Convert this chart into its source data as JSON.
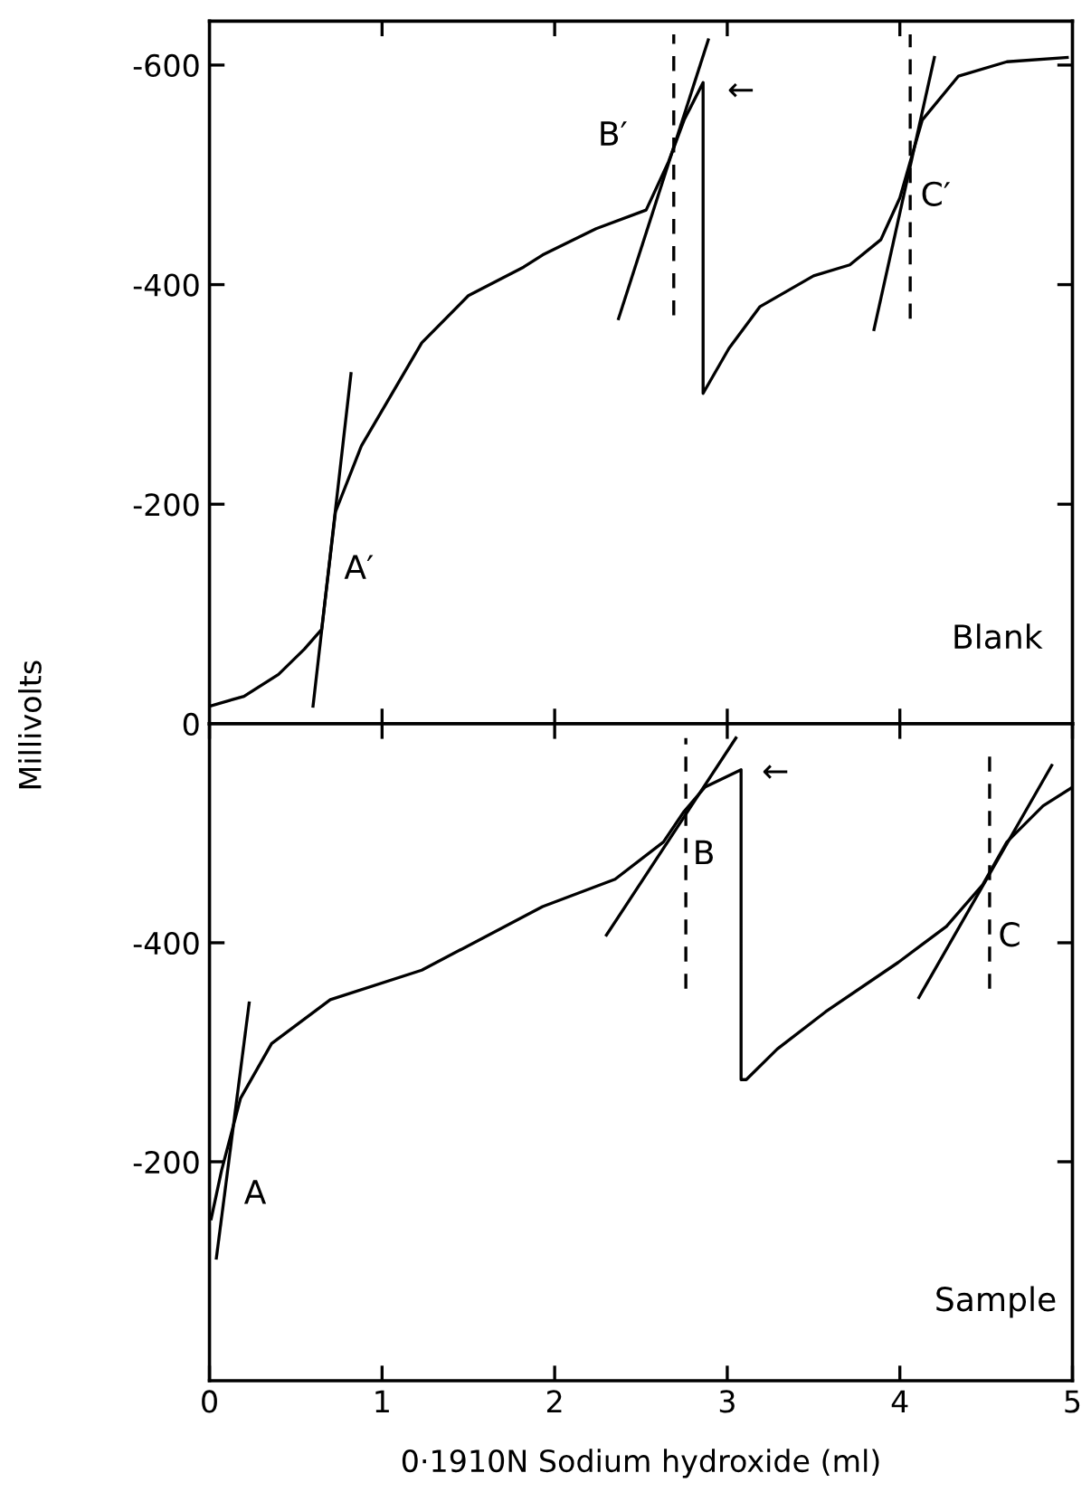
{
  "chart_data": [
    {
      "type": "line",
      "ylabel": "Millivolts",
      "xlim": [
        0,
        5
      ],
      "xticks": [
        {
          "value": 1,
          "label": null
        },
        {
          "value": 2,
          "label": null
        },
        {
          "value": 3,
          "label": null
        },
        {
          "value": 4,
          "label": null
        }
      ],
      "ylim": [
        0,
        -640
      ],
      "yticks": [
        -600,
        -400,
        -200,
        0
      ],
      "tick_labels": "y",
      "series": [
        {
          "color": "#000000",
          "x": [
            0,
            0.2,
            0.4,
            0.55,
            0.65,
            0.73,
            0.88,
            1.23,
            1.5,
            1.82,
            1.93,
            2.24,
            2.53,
            2.66,
            2.75,
            2.86,
            2.86,
            3.01,
            3.19,
            3.5,
            3.71,
            3.89,
            4.0,
            4.06,
            4.13,
            4.34,
            4.62,
            4.97
          ],
          "values": [
            -16,
            -25,
            -45,
            -68,
            -86,
            -193,
            -253,
            -347,
            -390,
            -416,
            -427,
            -451,
            -468,
            -512,
            -550,
            -584,
            -301,
            -342,
            -380,
            -408,
            -418,
            -441,
            -479,
            -512,
            -550,
            -590,
            -603,
            -607
          ]
        },
        {
          "color": "#000000",
          "x": [
            0.6,
            0.82
          ],
          "values": [
            -16,
            -319
          ]
        },
        {
          "color": "#000000",
          "x": [
            2.37,
            2.89
          ],
          "values": [
            -369,
            -623
          ]
        },
        {
          "color": "#000000",
          "x": [
            3.85,
            4.2
          ],
          "values": [
            -359,
            -607
          ]
        },
        {
          "color": "#000000",
          "line_style": "dashed",
          "x": [
            2.69,
            2.69
          ],
          "values": [
            -372,
            -628
          ]
        },
        {
          "color": "#000000",
          "line_style": "dashed",
          "x": [
            4.06,
            4.06
          ],
          "values": [
            -369,
            -628
          ]
        }
      ],
      "annotations": [
        "A′",
        "B′",
        "C′",
        "←",
        "Blank"
      ]
    },
    {
      "type": "line",
      "xlabel": "0·1910N Sodium hydroxide (ml)",
      "xlim": [
        0,
        5
      ],
      "xticks": [
        0,
        1,
        2,
        3,
        4,
        5
      ],
      "ylim": [
        0,
        -600
      ],
      "yticks": [
        -400,
        -200
      ],
      "series": [
        {
          "color": "#000000",
          "x": [
            0.01,
            0.07,
            0.18,
            0.36,
            0.7,
            1.23,
            1.93,
            2.35,
            2.63,
            2.75,
            2.87,
            3.08,
            3.08,
            3.11,
            3.29,
            3.57,
            3.99,
            4.27,
            4.48,
            4.62,
            4.83,
            5.0
          ],
          "values": [
            -148,
            -192,
            -258,
            -308,
            -348,
            -375,
            -433,
            -458,
            -492,
            -520,
            -542,
            -558,
            -275,
            -275,
            -303,
            -337,
            -382,
            -415,
            -453,
            -492,
            -525,
            -542
          ]
        },
        {
          "color": "#000000",
          "x": [
            0.04,
            0.23
          ],
          "values": [
            -112,
            -345
          ]
        },
        {
          "color": "#000000",
          "x": [
            2.3,
            3.05
          ],
          "values": [
            -407,
            -587
          ]
        },
        {
          "color": "#000000",
          "x": [
            4.11,
            4.88
          ],
          "values": [
            -350,
            -562
          ]
        },
        {
          "color": "#000000",
          "line_style": "dashed",
          "x": [
            2.76,
            2.76
          ],
          "values": [
            -358,
            -587
          ]
        },
        {
          "color": "#000000",
          "line_style": "dashed",
          "x": [
            4.52,
            4.52
          ],
          "values": [
            -358,
            -575
          ]
        }
      ],
      "annotations": [
        "A",
        "B",
        "C",
        "←",
        "Sample"
      ]
    }
  ]
}
